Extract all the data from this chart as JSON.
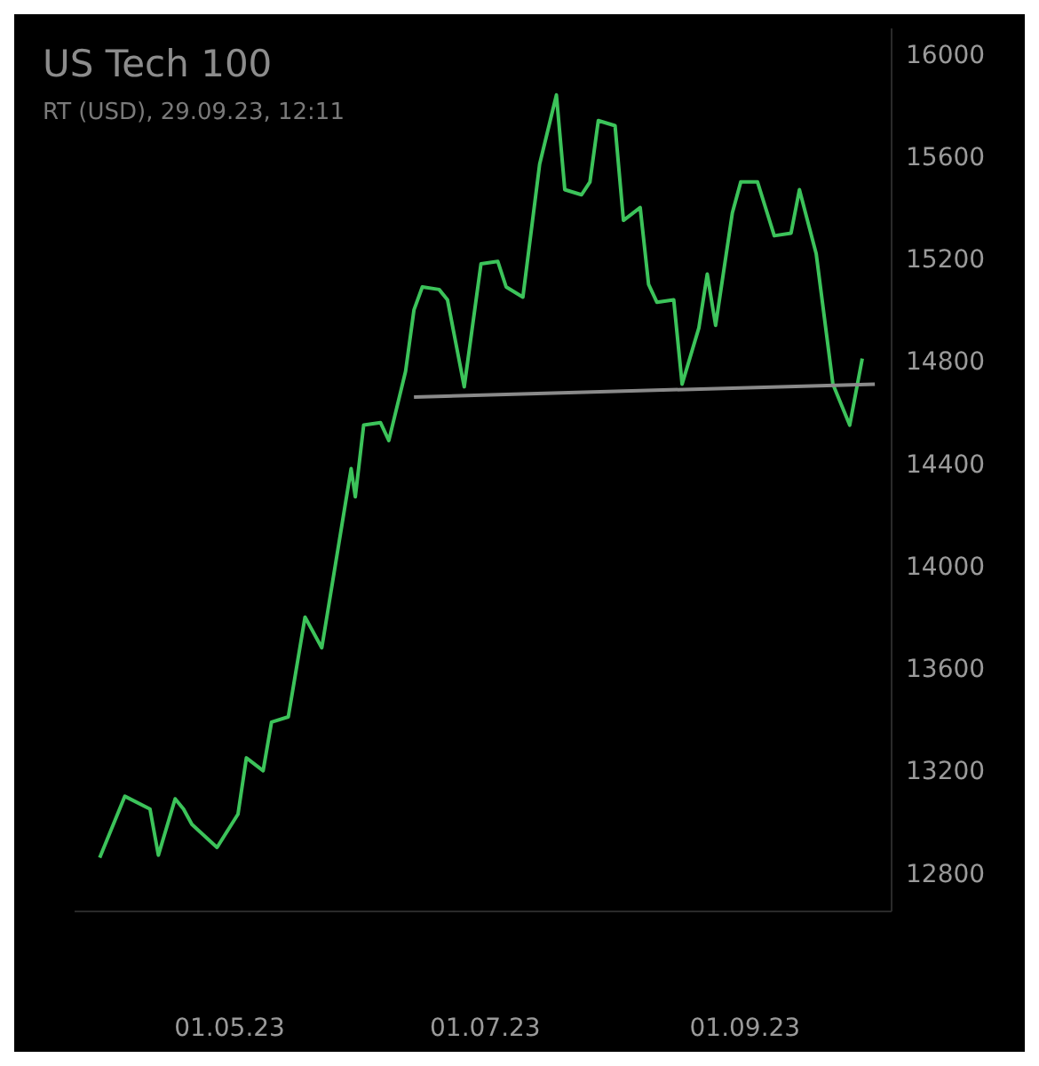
{
  "chart_data": {
    "type": "line",
    "title": "US Tech 100",
    "subtitle": "RT (USD), 29.09.23, 12:11",
    "xlim": [
      "2023-03-25",
      "2023-10-06"
    ],
    "xticks": [
      {
        "value": "2023-05-01",
        "label": "01.05.23"
      },
      {
        "value": "2023-07-01",
        "label": "01.07.23"
      },
      {
        "value": "2023-09-01",
        "label": "01.09.23"
      }
    ],
    "ylim": [
      12650,
      16100
    ],
    "yticks": [
      12800,
      13200,
      13600,
      14000,
      14400,
      14800,
      15200,
      15600,
      16000
    ],
    "grid": false,
    "legend": false,
    "marker": "none",
    "line_style": "solid",
    "series": [
      {
        "color": "#3cc35a",
        "x": [
          "2023-03-31",
          "2023-04-06",
          "2023-04-12",
          "2023-04-14",
          "2023-04-18",
          "2023-04-20",
          "2023-04-22",
          "2023-04-28",
          "2023-05-03",
          "2023-05-05",
          "2023-05-09",
          "2023-05-11",
          "2023-05-15",
          "2023-05-19",
          "2023-05-23",
          "2023-05-30",
          "2023-05-31",
          "2023-06-02",
          "2023-06-06",
          "2023-06-08",
          "2023-06-12",
          "2023-06-14",
          "2023-06-16",
          "2023-06-20",
          "2023-06-22",
          "2023-06-26",
          "2023-06-30",
          "2023-07-04",
          "2023-07-06",
          "2023-07-10",
          "2023-07-14",
          "2023-07-18",
          "2023-07-20",
          "2023-07-24",
          "2023-07-26",
          "2023-07-28",
          "2023-08-01",
          "2023-08-03",
          "2023-08-07",
          "2023-08-09",
          "2023-08-11",
          "2023-08-15",
          "2023-08-17",
          "2023-08-21",
          "2023-08-23",
          "2023-08-25",
          "2023-08-29",
          "2023-08-31",
          "2023-09-04",
          "2023-09-08",
          "2023-09-12",
          "2023-09-14",
          "2023-09-18",
          "2023-09-22",
          "2023-09-26",
          "2023-09-29"
        ],
        "values": [
          12860,
          13100,
          13050,
          12870,
          13090,
          13050,
          12990,
          12900,
          13030,
          13250,
          13200,
          13390,
          13410,
          13800,
          13680,
          14380,
          14270,
          14550,
          14560,
          14490,
          14760,
          15000,
          15090,
          15080,
          15040,
          14700,
          15180,
          15190,
          15090,
          15050,
          15570,
          15840,
          15470,
          15450,
          15500,
          15740,
          15720,
          15350,
          15400,
          15100,
          15030,
          15040,
          14710,
          14930,
          15140,
          14940,
          15380,
          15500,
          15500,
          15290,
          15300,
          15470,
          15220,
          14710,
          14550,
          14810
        ]
      },
      {
        "color": "#8a8a8a",
        "x": [
          "2023-06-14",
          "2023-10-02"
        ],
        "values": [
          14660,
          14710
        ]
      }
    ]
  }
}
